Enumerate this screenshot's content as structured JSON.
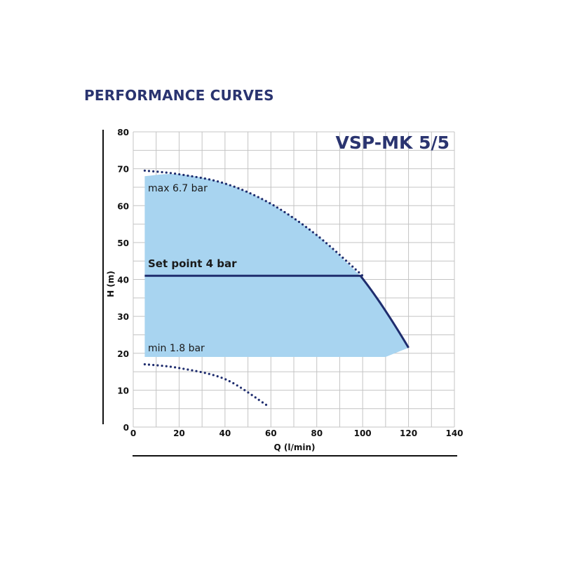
{
  "title": "PERFORMANCE CURVES",
  "chart_data": {
    "type": "line",
    "model": "VSP-MK 5/5",
    "xlabel": "Q (l/min)",
    "ylabel": "H (m)",
    "xlim": [
      0,
      140
    ],
    "ylim": [
      0,
      80
    ],
    "xticks": [
      0,
      20,
      40,
      60,
      80,
      100,
      120,
      140
    ],
    "yticks": [
      0,
      10,
      20,
      30,
      40,
      50,
      60,
      70,
      80
    ],
    "grid": true,
    "colors": {
      "region_fill": "#a8d4f0",
      "curve": "#1f2d6e",
      "grid": "#c4c4c4",
      "title": "#2a3470"
    },
    "annotations": [
      {
        "key": "max",
        "text": "max 6.7 bar"
      },
      {
        "key": "setpoint",
        "text": "Set point 4 bar"
      },
      {
        "key": "min",
        "text": "min 1.8 bar"
      }
    ],
    "series": [
      {
        "key": "max-curve",
        "style": "dotted",
        "points": [
          [
            5,
            69.5
          ],
          [
            20,
            68.5
          ],
          [
            40,
            66
          ],
          [
            60,
            60.5
          ],
          [
            80,
            52
          ],
          [
            100,
            41
          ]
        ]
      },
      {
        "key": "min-curve",
        "style": "dotted",
        "points": [
          [
            5,
            17
          ],
          [
            20,
            16
          ],
          [
            40,
            13
          ],
          [
            58,
            6
          ]
        ]
      },
      {
        "key": "set-point",
        "style": "solid",
        "points": [
          [
            5,
            41
          ],
          [
            99,
            41
          ],
          [
            108,
            34
          ],
          [
            120,
            21.5
          ]
        ]
      }
    ],
    "operating_region": [
      [
        5,
        68
      ],
      [
        20,
        68.5
      ],
      [
        40,
        66
      ],
      [
        60,
        60.5
      ],
      [
        80,
        52
      ],
      [
        99,
        41
      ],
      [
        108,
        34
      ],
      [
        120,
        21.5
      ],
      [
        110,
        19
      ],
      [
        5,
        19
      ]
    ]
  }
}
